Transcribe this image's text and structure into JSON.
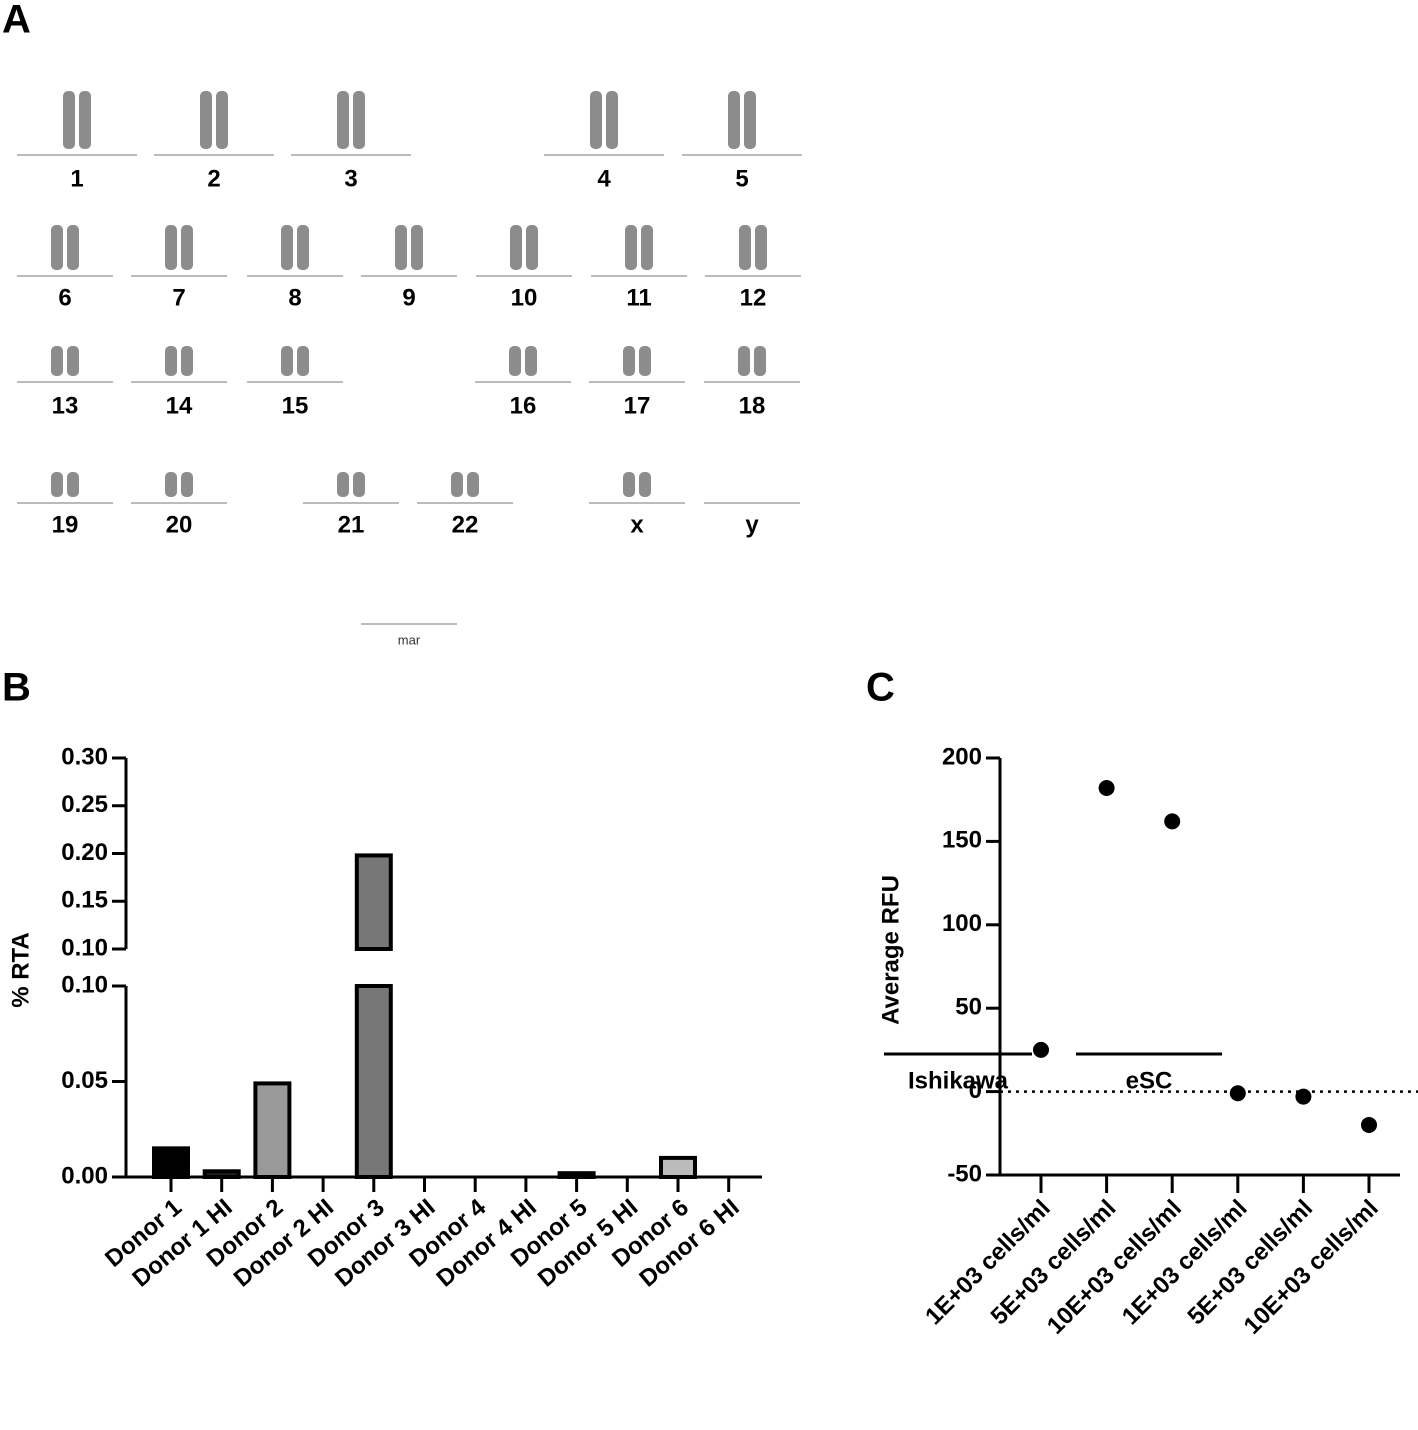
{
  "panel_labels": [
    "A",
    "B",
    "C"
  ],
  "karyotype": {
    "labels": [
      "1",
      "2",
      "3",
      "4",
      "5",
      "6",
      "7",
      "8",
      "9",
      "10",
      "11",
      "12",
      "13",
      "14",
      "15",
      "16",
      "17",
      "18",
      "19",
      "20",
      "21",
      "22",
      "x",
      "y"
    ],
    "marker_label": "mar"
  },
  "chart_data": [
    {
      "type": "bar",
      "y_label": "% RTA",
      "categories": [
        "Donor 1",
        "Donor 1 HI",
        "Donor 2",
        "Donor 2 HI",
        "Donor 3",
        "Donor 3 HI",
        "Donor 4",
        "Donor 4 HI",
        "Donor 5",
        "Donor 5 HI",
        "Donor 6",
        "Donor 6 HI"
      ],
      "values": [
        0.015,
        0.003,
        0.049,
        0,
        0.198,
        0,
        0,
        0,
        0.002,
        0,
        0.01,
        0
      ],
      "colors": [
        "#000000",
        "#222222",
        "#999999",
        "#999999",
        "#777777",
        "#777777",
        "#777777",
        "#777777",
        "#888888",
        "#888888",
        "#bbbbbb",
        "#bbbbbb"
      ],
      "axis_segments": [
        {
          "ylim": [
            0,
            0.1
          ],
          "yticks": [
            {
              "value": 0,
              "label": "0.00"
            },
            0.05,
            {
              "value": 0.1,
              "label": "0.10"
            }
          ]
        },
        {
          "ylim": [
            0.1,
            0.3
          ],
          "yticks": [
            {
              "value": 0.1,
              "label": "0.10"
            },
            0.15,
            {
              "value": 0.2,
              "label": "0.20"
            },
            0.25,
            {
              "value": 0.3,
              "label": "0.30"
            }
          ]
        }
      ]
    },
    {
      "type": "scatter",
      "y_label": "Average RFU",
      "color": "#000000",
      "zero_line": true,
      "ylim": [
        -50,
        200
      ],
      "yticks": [
        -50,
        0,
        50,
        100,
        150,
        200
      ],
      "groups": [
        {
          "label": "Ishikawa",
          "categories": [
            "1E+03 cells/ml",
            "5E+03 cells/ml",
            "10E+03 cells/ml"
          ],
          "values": [
            25,
            182,
            162
          ]
        },
        {
          "label": "eSC",
          "categories": [
            "1E+03 cells/ml",
            "5E+03 cells/ml",
            "10E+03 cells/ml"
          ],
          "values": [
            -1,
            -3,
            -20
          ]
        }
      ]
    }
  ]
}
